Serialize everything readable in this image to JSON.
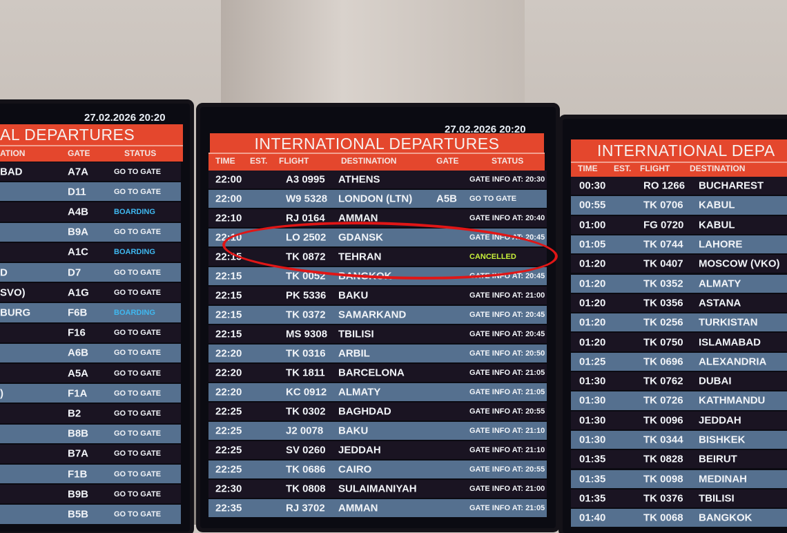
{
  "colors": {
    "header_red": "#e4472d",
    "row_dark": "#1a1422",
    "row_light": "#55708f",
    "boarding": "#3fb8f0",
    "cancelled": "#c8f03a",
    "highlight_circle": "#e01616"
  },
  "left_board": {
    "date": "27.02.2026 20:20",
    "title": "AL DEPARTURES",
    "headers": {
      "destination": "ATION",
      "gate": "GATE",
      "status": "STATUS"
    },
    "rows": [
      {
        "destination": "BAD",
        "gate": "A7A",
        "status": "GO TO GATE"
      },
      {
        "destination": "",
        "gate": "D11",
        "status": "GO TO GATE"
      },
      {
        "destination": "",
        "gate": "A4B",
        "status": "BOARDING"
      },
      {
        "destination": "",
        "gate": "B9A",
        "status": "GO TO GATE"
      },
      {
        "destination": "",
        "gate": "A1C",
        "status": "BOARDING"
      },
      {
        "destination": "D",
        "gate": "D7",
        "status": "GO TO GATE"
      },
      {
        "destination": "SVO)",
        "gate": "A1G",
        "status": "GO TO GATE"
      },
      {
        "destination": "BURG",
        "gate": "F6B",
        "status": "BOARDING"
      },
      {
        "destination": "",
        "gate": "F16",
        "status": "GO TO GATE"
      },
      {
        "destination": "",
        "gate": "A6B",
        "status": "GO TO GATE"
      },
      {
        "destination": "",
        "gate": "A5A",
        "status": "GO TO GATE"
      },
      {
        "destination": ")",
        "gate": "F1A",
        "status": "GO TO GATE"
      },
      {
        "destination": "",
        "gate": "B2",
        "status": "GO TO GATE"
      },
      {
        "destination": "",
        "gate": "B8B",
        "status": "GO TO GATE"
      },
      {
        "destination": "",
        "gate": "B7A",
        "status": "GO TO GATE"
      },
      {
        "destination": "",
        "gate": "F1B",
        "status": "GO TO GATE"
      },
      {
        "destination": "",
        "gate": "B9B",
        "status": "GO TO GATE"
      },
      {
        "destination": "",
        "gate": "B5B",
        "status": "GO TO GATE"
      }
    ]
  },
  "center_board": {
    "date": "27.02.2026 20:20",
    "title": "INTERNATIONAL DEPARTURES",
    "headers": {
      "time": "TIME",
      "est": "EST.",
      "flight": "FLIGHT",
      "destination": "DESTINATION",
      "gate": "GATE",
      "status": "STATUS"
    },
    "rows": [
      {
        "time": "22:00",
        "flight": "A3 0995",
        "destination": "ATHENS",
        "gate": "",
        "status": "GATE INFO AT: 20:30"
      },
      {
        "time": "22:00",
        "flight": "W9 5328",
        "destination": "LONDON (LTN)",
        "gate": "A5B",
        "status": "GO TO GATE"
      },
      {
        "time": "22:10",
        "flight": "RJ 0164",
        "destination": "AMMAN",
        "gate": "",
        "status": "GATE INFO AT: 20:40"
      },
      {
        "time": "22:10",
        "flight": "LO 2502",
        "destination": "GDANSK",
        "gate": "",
        "status": "GATE INFO AT: 20:45"
      },
      {
        "time": "22:15",
        "flight": "TK 0872",
        "destination": "TEHRAN",
        "gate": "",
        "status": "CANCELLED"
      },
      {
        "time": "22:15",
        "flight": "TK 0052",
        "destination": "BANGKOK",
        "gate": "",
        "status": "GATE INFO AT: 20:45"
      },
      {
        "time": "22:15",
        "flight": "PK 5336",
        "destination": "BAKU",
        "gate": "",
        "status": "GATE INFO AT: 21:00"
      },
      {
        "time": "22:15",
        "flight": "TK 0372",
        "destination": "SAMARKAND",
        "gate": "",
        "status": "GATE INFO AT: 20:45"
      },
      {
        "time": "22:15",
        "flight": "MS 9308",
        "destination": "TBILISI",
        "gate": "",
        "status": "GATE INFO AT: 20:45"
      },
      {
        "time": "22:20",
        "flight": "TK 0316",
        "destination": "ARBIL",
        "gate": "",
        "status": "GATE INFO AT: 20:50"
      },
      {
        "time": "22:20",
        "flight": "TK 1811",
        "destination": "BARCELONA",
        "gate": "",
        "status": "GATE INFO AT: 21:05"
      },
      {
        "time": "22:20",
        "flight": "KC 0912",
        "destination": "ALMATY",
        "gate": "",
        "status": "GATE INFO AT: 21:05"
      },
      {
        "time": "22:25",
        "flight": "TK 0302",
        "destination": "BAGHDAD",
        "gate": "",
        "status": "GATE INFO AT: 20:55"
      },
      {
        "time": "22:25",
        "flight": "J2 0078",
        "destination": "BAKU",
        "gate": "",
        "status": "GATE INFO AT: 21:10"
      },
      {
        "time": "22:25",
        "flight": "SV 0260",
        "destination": "JEDDAH",
        "gate": "",
        "status": "GATE INFO AT: 21:10"
      },
      {
        "time": "22:25",
        "flight": "TK 0686",
        "destination": "CAIRO",
        "gate": "",
        "status": "GATE INFO AT: 20:55"
      },
      {
        "time": "22:30",
        "flight": "TK 0808",
        "destination": "SULAIMANIYAH",
        "gate": "",
        "status": "GATE INFO AT: 21:00"
      },
      {
        "time": "22:35",
        "flight": "RJ 3702",
        "destination": "AMMAN",
        "gate": "",
        "status": "GATE INFO AT: 21:05"
      }
    ]
  },
  "right_board": {
    "title": "INTERNATIONAL DEPA",
    "headers": {
      "time": "TIME",
      "est": "EST.",
      "flight": "FLIGHT",
      "destination": "DESTINATION"
    },
    "rows": [
      {
        "time": "00:30",
        "flight": "RO 1266",
        "destination": "BUCHAREST"
      },
      {
        "time": "00:55",
        "flight": "TK 0706",
        "destination": "KABUL"
      },
      {
        "time": "01:00",
        "flight": "FG 0720",
        "destination": "KABUL"
      },
      {
        "time": "01:05",
        "flight": "TK 0744",
        "destination": "LAHORE"
      },
      {
        "time": "01:20",
        "flight": "TK 0407",
        "destination": "MOSCOW (VKO)"
      },
      {
        "time": "01:20",
        "flight": "TK 0352",
        "destination": "ALMATY"
      },
      {
        "time": "01:20",
        "flight": "TK 0356",
        "destination": "ASTANA"
      },
      {
        "time": "01:20",
        "flight": "TK 0256",
        "destination": "TURKISTAN"
      },
      {
        "time": "01:20",
        "flight": "TK 0750",
        "destination": "ISLAMABAD"
      },
      {
        "time": "01:25",
        "flight": "TK 0696",
        "destination": "ALEXANDRIA"
      },
      {
        "time": "01:30",
        "flight": "TK 0762",
        "destination": "DUBAI"
      },
      {
        "time": "01:30",
        "flight": "TK 0726",
        "destination": "KATHMANDU"
      },
      {
        "time": "01:30",
        "flight": "TK 0096",
        "destination": "JEDDAH"
      },
      {
        "time": "01:30",
        "flight": "TK 0344",
        "destination": "BISHKEK"
      },
      {
        "time": "01:35",
        "flight": "TK 0828",
        "destination": "BEIRUT"
      },
      {
        "time": "01:35",
        "flight": "TK 0098",
        "destination": "MEDINAH"
      },
      {
        "time": "01:35",
        "flight": "TK 0376",
        "destination": "TBILISI"
      },
      {
        "time": "01:40",
        "flight": "TK 0068",
        "destination": "BANGKOK"
      }
    ]
  }
}
